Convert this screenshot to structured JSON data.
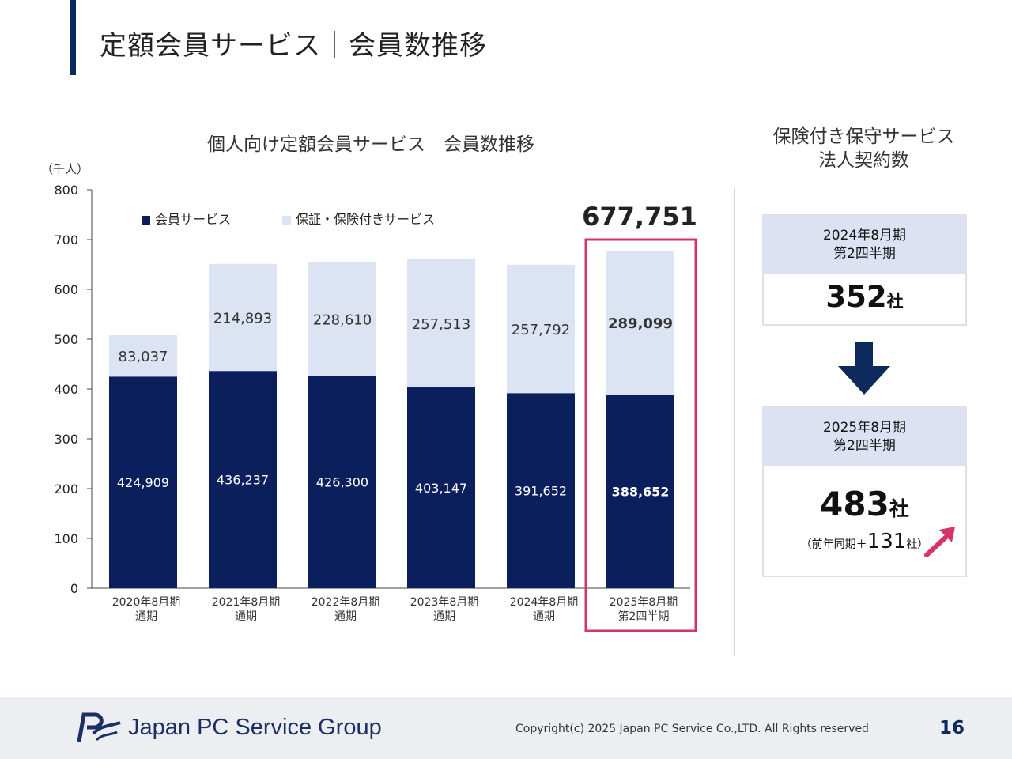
{
  "page": {
    "title": "定額会員サービス｜会員数推移",
    "page_number": "16",
    "copyright": "Copyright(c) 2025 Japan PC Service Co.,LTD. All Rights reserved",
    "logo_text": "Japan PC Service Group"
  },
  "colors": {
    "accent": "#0d2a5c",
    "member_series": "#0b1f5c",
    "guarantee_series": "#dce3f3",
    "highlight": "#d6336c",
    "card_header": "#dce2f2"
  },
  "chart_data": {
    "type": "bar",
    "stacked": true,
    "title": "個人向け定額会員サービス　会員数推移",
    "unit_label": "（千人）",
    "ylim": [
      0,
      800
    ],
    "yticks": [
      0,
      100,
      200,
      300,
      400,
      500,
      600,
      700,
      800
    ],
    "categories": [
      [
        "2020年8月期",
        "通期"
      ],
      [
        "2021年8月期",
        "通期"
      ],
      [
        "2022年8月期",
        "通期"
      ],
      [
        "2023年8月期",
        "通期"
      ],
      [
        "2024年8月期",
        "通期"
      ],
      [
        "2025年8月期",
        "第2四半期"
      ]
    ],
    "series": [
      {
        "name": "会員サービス",
        "values": [
          424.909,
          436.237,
          426.3,
          403.147,
          391.652,
          388.652
        ],
        "labels": [
          "424,909",
          "436,237",
          "426,300",
          "403,147",
          "391,652",
          "388,652"
        ]
      },
      {
        "name": "保証・保険付きサービス",
        "values": [
          83.037,
          214.893,
          228.61,
          257.513,
          257.792,
          289.099
        ],
        "labels": [
          "83,037",
          "214,893",
          "228,610",
          "257,513",
          "257,792",
          "289,099"
        ]
      }
    ],
    "legend_position": "top-left",
    "grid": false,
    "highlight_index": 5,
    "highlight_total": "677,751"
  },
  "right_panel": {
    "title_line1": "保険付き保守サービス",
    "title_line2": "法人契約数",
    "card1": {
      "period_line1": "2024年8月期",
      "period_line2": "第2四半期",
      "value": "352",
      "unit": "社"
    },
    "card2": {
      "period_line1": "2025年8月期",
      "period_line2": "第2四半期",
      "value": "483",
      "unit": "社",
      "yoy_prefix": "（前年同期＋",
      "yoy_value": "131",
      "yoy_suffix": "社）"
    },
    "icons": [
      "down-arrow-icon",
      "up-right-arrow-icon"
    ]
  }
}
